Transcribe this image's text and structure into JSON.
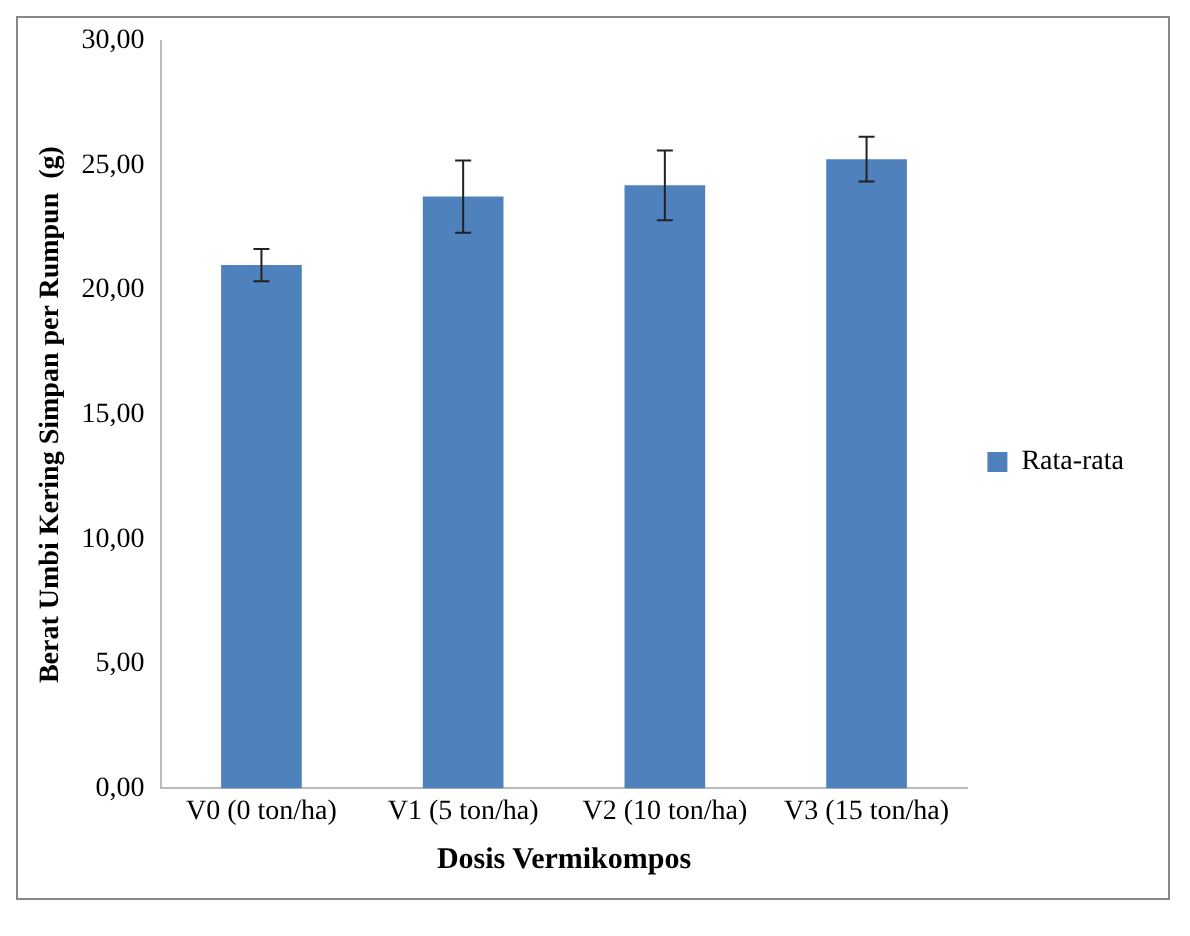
{
  "chart_data": {
    "type": "bar",
    "xlabel": "Dosis Vermikompos",
    "ylabel": "Berat Umbi Kering Simpan per Rumpun  (g)",
    "categories": [
      "V0 (0 ton/ha)",
      "V1 (5 ton/ha)",
      "V2 (10 ton/ha)",
      "V3 (15 ton/ha)"
    ],
    "series": [
      {
        "name": "Rata-rata",
        "color": "#4f81bd",
        "values": [
          21.0,
          23.75,
          24.2,
          25.25
        ],
        "errors": [
          0.65,
          1.45,
          1.4,
          0.9
        ]
      }
    ],
    "ylim": [
      0,
      30
    ],
    "yticks": [
      {
        "value": 0,
        "label": "0,00"
      },
      {
        "value": 5,
        "label": "5,00"
      },
      {
        "value": 10,
        "label": "10,00"
      },
      {
        "value": 15,
        "label": "15,00"
      },
      {
        "value": 20,
        "label": "20,00"
      },
      {
        "value": 25,
        "label": "25,00"
      },
      {
        "value": 30,
        "label": "30,00"
      }
    ],
    "grid": false,
    "legend": "right"
  }
}
